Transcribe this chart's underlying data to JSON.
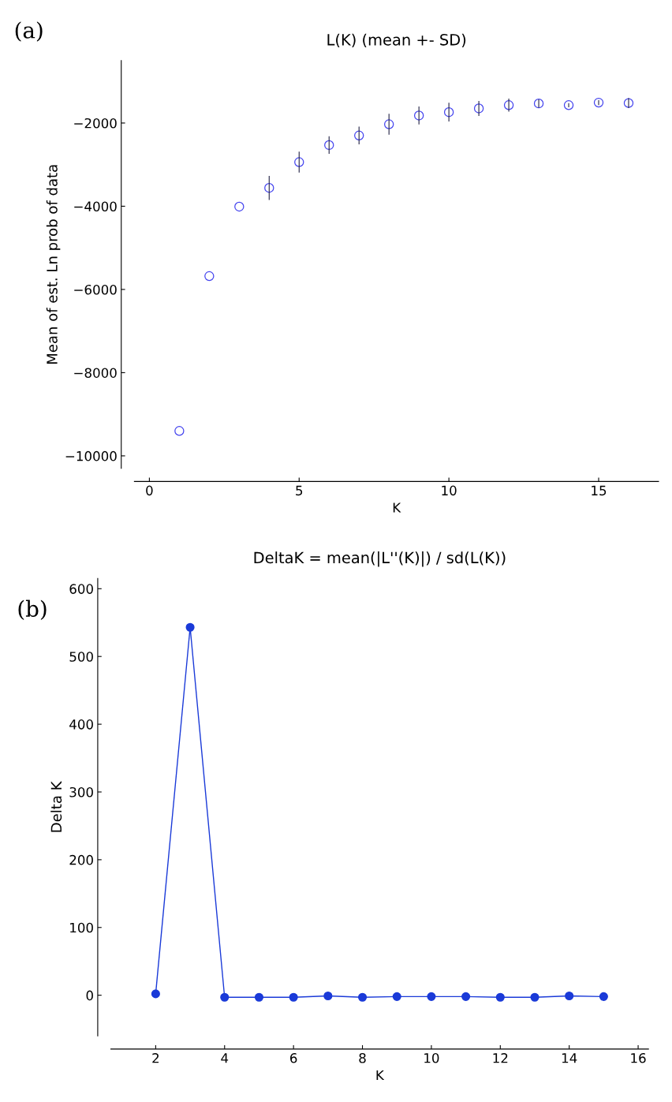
{
  "chart_data": [
    {
      "type": "scatter",
      "title": "L(K) (mean +- SD)",
      "xlabel": "K",
      "ylabel": "Mean of est. Ln prob of data",
      "annotations": [
        "(a)"
      ],
      "x": [
        1,
        2,
        3,
        4,
        5,
        6,
        7,
        8,
        9,
        10,
        11,
        12,
        13,
        14,
        15,
        16
      ],
      "series": [
        {
          "color": "#4444ee",
          "marker": "circle",
          "values": [
            -9400,
            -5680,
            -4010,
            -3560,
            -2940,
            -2530,
            -2300,
            -2030,
            -1820,
            -1740,
            -1650,
            -1570,
            -1530,
            -1570,
            -1510,
            -1520
          ],
          "errors": [
            null,
            null,
            null,
            290,
            250,
            210,
            215,
            250,
            215,
            225,
            180,
            155,
            100,
            50,
            60,
            120
          ]
        }
      ],
      "xlim": [
        -0.5,
        17
      ],
      "ylim": [
        -10300,
        -500
      ],
      "xticks": [
        0,
        5,
        10,
        15
      ],
      "yticks": [
        {
          "value": -10000,
          "label": "−10000"
        },
        {
          "value": -8000,
          "label": "−8000"
        },
        {
          "value": -6000,
          "label": "−6000"
        },
        {
          "value": -4000,
          "label": "−4000"
        },
        {
          "value": -2000,
          "label": "−2000"
        }
      ]
    },
    {
      "type": "line",
      "title": "DeltaK = mean(|L''(K)|) / sd(L(K))",
      "xlabel": "K",
      "ylabel": "Delta K",
      "annotations": [
        "(b)"
      ],
      "x": [
        2,
        3,
        4,
        5,
        6,
        7,
        8,
        9,
        10,
        11,
        12,
        13,
        14,
        15
      ],
      "series": [
        {
          "color": "#1a3ad8",
          "marker": "circle",
          "values": [
            2,
            543,
            -3,
            -3,
            -3,
            -1,
            -3,
            -2,
            -2,
            -2,
            -3,
            -3,
            -1,
            -2
          ]
        }
      ],
      "xlim": [
        0.7,
        16.3
      ],
      "ylim": [
        -60,
        615
      ],
      "xticks": [
        2,
        4,
        6,
        8,
        10,
        12,
        14,
        16
      ],
      "yticks": [
        0,
        100,
        200,
        300,
        400,
        500,
        600
      ]
    }
  ]
}
